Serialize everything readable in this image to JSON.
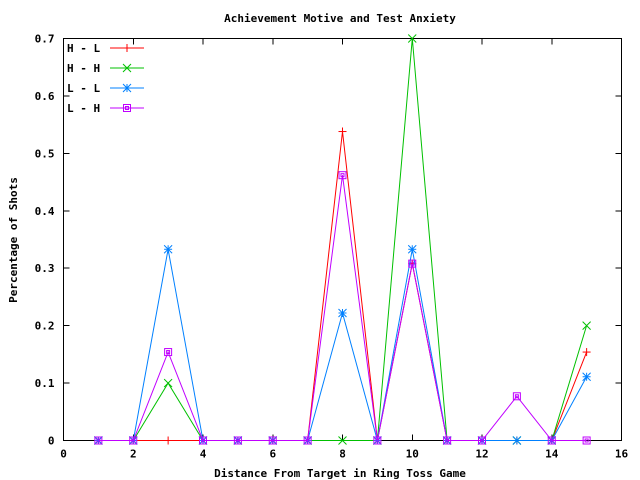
{
  "chart_data": {
    "type": "line",
    "title": "Achievement Motive and Test Anxiety",
    "xlabel": "Distance From Target in Ring Toss Game",
    "ylabel": "Percentage of Shots",
    "xlim": [
      0,
      16
    ],
    "ylim": [
      0,
      0.7
    ],
    "xticks": [
      0,
      2,
      4,
      6,
      8,
      10,
      12,
      14,
      16
    ],
    "xtick_labels": [
      "0",
      "2",
      "4",
      "6",
      "8",
      "10",
      "12",
      "14",
      "16"
    ],
    "yticks": [
      0,
      0.1,
      0.2,
      0.3,
      0.4,
      0.5,
      0.6,
      0.7
    ],
    "ytick_labels": [
      "0",
      "0.1",
      "0.2",
      "0.3",
      "0.4",
      "0.5",
      "0.6",
      "0.7"
    ],
    "grid": false,
    "legend_position": "top-left",
    "x": [
      1,
      2,
      3,
      4,
      5,
      6,
      7,
      8,
      9,
      10,
      11,
      12,
      13,
      14,
      15
    ],
    "series": [
      {
        "name": "H - L",
        "color": "#ff0000",
        "marker": "plus",
        "values": [
          0,
          0,
          0,
          0,
          0,
          0,
          0,
          0.538,
          0,
          0.308,
          0,
          0,
          0,
          0,
          0.154
        ]
      },
      {
        "name": "H - H",
        "color": "#00c000",
        "marker": "cross",
        "values": [
          0,
          0,
          0.1,
          0,
          0,
          0,
          0,
          0,
          0,
          0.7,
          0,
          0,
          0,
          0,
          0.2
        ]
      },
      {
        "name": "L - L",
        "color": "#0080ff",
        "marker": "star",
        "values": [
          0,
          0,
          0.333,
          0,
          0,
          0,
          0,
          0.222,
          0,
          0.333,
          0,
          0,
          0,
          0,
          0.111
        ]
      },
      {
        "name": "L - H",
        "color": "#c000ff",
        "marker": "box",
        "values": [
          0,
          0,
          0.154,
          0,
          0,
          0,
          0,
          0.462,
          0,
          0.308,
          0,
          0,
          0.077,
          0,
          0
        ]
      }
    ]
  }
}
